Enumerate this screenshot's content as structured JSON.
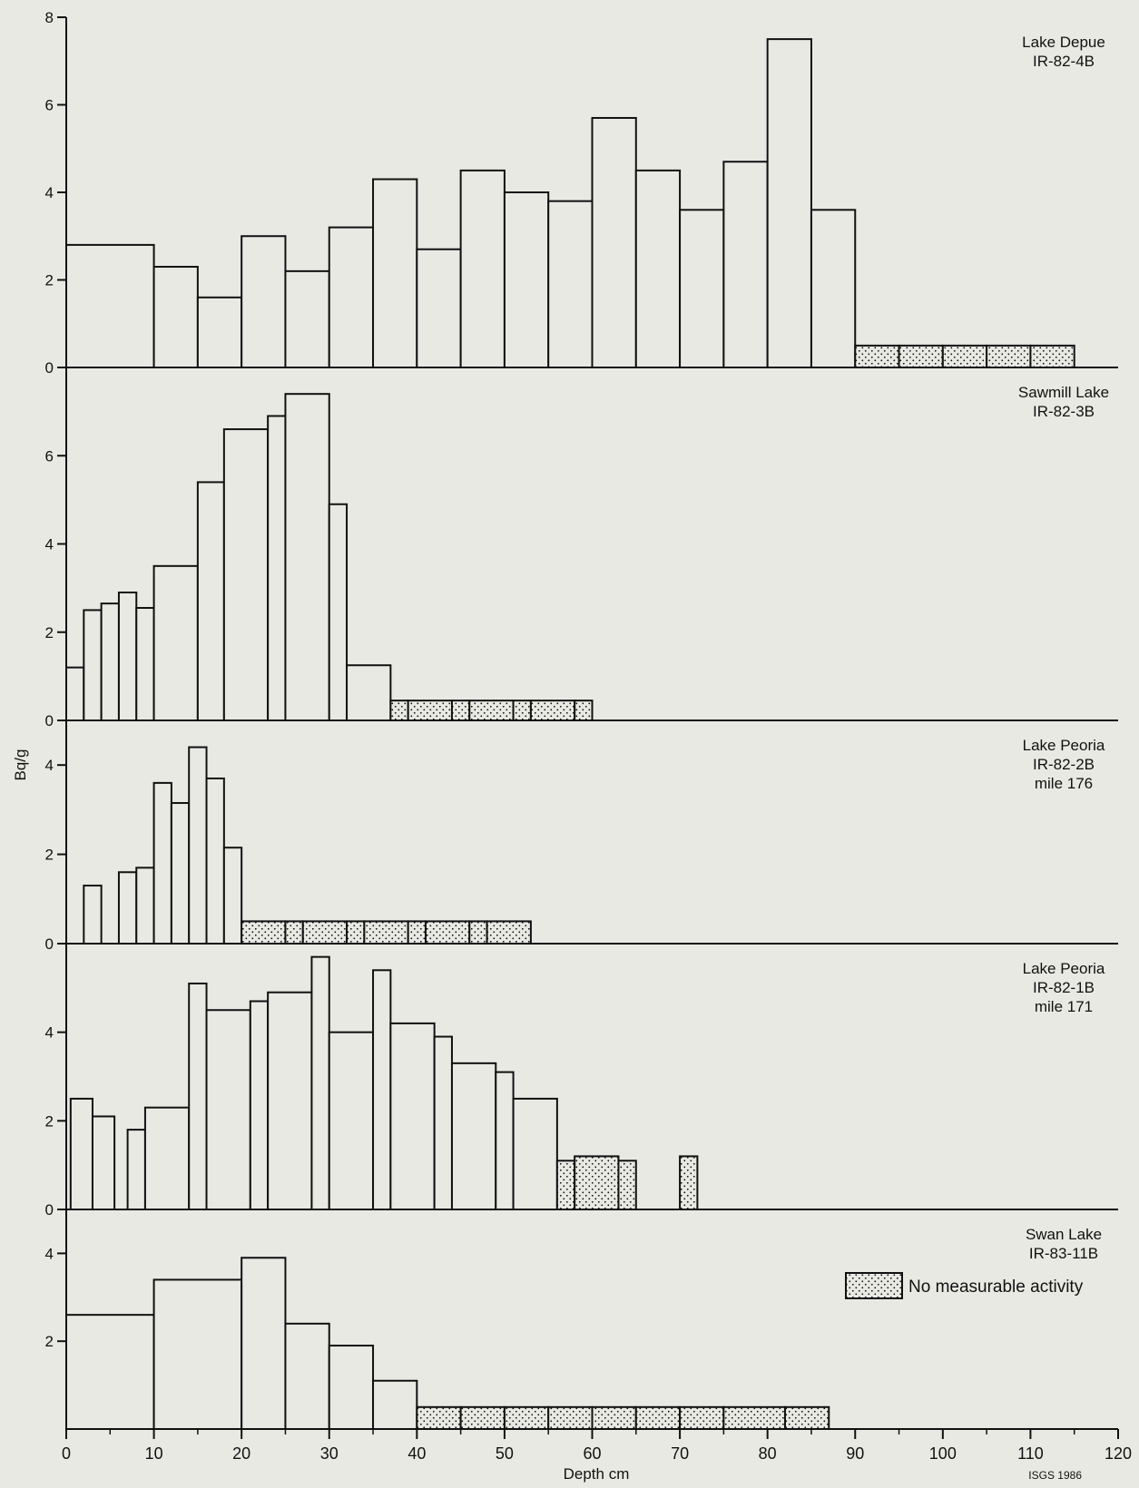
{
  "figure": {
    "ylabel": "Bq/g",
    "xlabel": "Depth cm",
    "credit": "ISGS 1986",
    "legend_label": "No measurable activity",
    "xticks": [
      "0",
      "10",
      "20",
      "30",
      "40",
      "50",
      "60",
      "70",
      "80",
      "90",
      "100",
      "110",
      "120"
    ]
  },
  "colors": {
    "background": "#e9e9e4",
    "bar_fill": "#e9e9e4",
    "stipple_fill": "#e9e9e4",
    "line": "#111111"
  },
  "chart_data": [
    {
      "type": "bar",
      "title": "Lake Depue",
      "subtitle": "IR-82-4B",
      "ylim": [
        0,
        8
      ],
      "yticks": [
        "0",
        "2",
        "4",
        "6",
        "8"
      ],
      "bars": [
        {
          "x0": 0,
          "x1": 10,
          "value": 2.8
        },
        {
          "x0": 10,
          "x1": 15,
          "value": 2.3
        },
        {
          "x0": 15,
          "x1": 20,
          "value": 1.6
        },
        {
          "x0": 20,
          "x1": 25,
          "value": 3.0
        },
        {
          "x0": 25,
          "x1": 30,
          "value": 2.2
        },
        {
          "x0": 30,
          "x1": 35,
          "value": 3.2
        },
        {
          "x0": 35,
          "x1": 40,
          "value": 4.3
        },
        {
          "x0": 40,
          "x1": 45,
          "value": 2.7
        },
        {
          "x0": 45,
          "x1": 50,
          "value": 4.5
        },
        {
          "x0": 50,
          "x1": 55,
          "value": 4.0
        },
        {
          "x0": 55,
          "x1": 60,
          "value": 3.8
        },
        {
          "x0": 60,
          "x1": 65,
          "value": 5.7
        },
        {
          "x0": 65,
          "x1": 70,
          "value": 4.5
        },
        {
          "x0": 70,
          "x1": 75,
          "value": 3.6
        },
        {
          "x0": 75,
          "x1": 80,
          "value": 4.7
        },
        {
          "x0": 80,
          "x1": 85,
          "value": 7.5
        },
        {
          "x0": 85,
          "x1": 90,
          "value": 3.6
        }
      ],
      "no_activity": [
        {
          "x0": 90,
          "x1": 95,
          "value": 0.5
        },
        {
          "x0": 95,
          "x1": 100,
          "value": 0.5
        },
        {
          "x0": 100,
          "x1": 105,
          "value": 0.5
        },
        {
          "x0": 105,
          "x1": 110,
          "value": 0.5
        },
        {
          "x0": 110,
          "x1": 115,
          "value": 0.5
        }
      ]
    },
    {
      "type": "bar",
      "title": "Sawmill Lake",
      "subtitle": "IR-82-3B",
      "ylim": [
        0,
        8
      ],
      "yticks": [
        "0",
        "2",
        "4",
        "6"
      ],
      "bars": [
        {
          "x0": 0,
          "x1": 2,
          "value": 1.2
        },
        {
          "x0": 2,
          "x1": 4,
          "value": 2.5
        },
        {
          "x0": 4,
          "x1": 6,
          "value": 2.65
        },
        {
          "x0": 6,
          "x1": 8,
          "value": 2.9
        },
        {
          "x0": 8,
          "x1": 10,
          "value": 2.55
        },
        {
          "x0": 10,
          "x1": 15,
          "value": 3.5
        },
        {
          "x0": 15,
          "x1": 18,
          "value": 5.4
        },
        {
          "x0": 18,
          "x1": 23,
          "value": 6.6
        },
        {
          "x0": 23,
          "x1": 25,
          "value": 6.9
        },
        {
          "x0": 25,
          "x1": 30,
          "value": 7.4
        },
        {
          "x0": 30,
          "x1": 32,
          "value": 4.9
        },
        {
          "x0": 32,
          "x1": 37,
          "value": 1.25
        }
      ],
      "no_activity": [
        {
          "x0": 37,
          "x1": 39,
          "value": 0.45
        },
        {
          "x0": 39,
          "x1": 44,
          "value": 0.45
        },
        {
          "x0": 44,
          "x1": 46,
          "value": 0.45
        },
        {
          "x0": 46,
          "x1": 51,
          "value": 0.45
        },
        {
          "x0": 51,
          "x1": 53,
          "value": 0.45
        },
        {
          "x0": 53,
          "x1": 58,
          "value": 0.45
        },
        {
          "x0": 58,
          "x1": 60,
          "value": 0.45
        }
      ]
    },
    {
      "type": "bar",
      "title": "Lake Peoria",
      "subtitle": "IR-82-2B",
      "subtitle2": "mile 176",
      "ylim": [
        0,
        5
      ],
      "yticks": [
        "0",
        "2",
        "4"
      ],
      "bars": [
        {
          "x0": 2,
          "x1": 4,
          "value": 1.3
        },
        {
          "x0": 6,
          "x1": 8,
          "value": 1.6
        },
        {
          "x0": 8,
          "x1": 10,
          "value": 1.7
        },
        {
          "x0": 10,
          "x1": 12,
          "value": 3.6
        },
        {
          "x0": 12,
          "x1": 14,
          "value": 3.15
        },
        {
          "x0": 14,
          "x1": 16,
          "value": 4.4
        },
        {
          "x0": 16,
          "x1": 18,
          "value": 3.7
        },
        {
          "x0": 18,
          "x1": 20,
          "value": 2.15
        }
      ],
      "no_activity": [
        {
          "x0": 20,
          "x1": 25,
          "value": 0.5
        },
        {
          "x0": 25,
          "x1": 27,
          "value": 0.5
        },
        {
          "x0": 27,
          "x1": 32,
          "value": 0.5
        },
        {
          "x0": 32,
          "x1": 34,
          "value": 0.5
        },
        {
          "x0": 34,
          "x1": 39,
          "value": 0.5
        },
        {
          "x0": 39,
          "x1": 41,
          "value": 0.5
        },
        {
          "x0": 41,
          "x1": 46,
          "value": 0.5
        },
        {
          "x0": 46,
          "x1": 48,
          "value": 0.5
        },
        {
          "x0": 48,
          "x1": 53,
          "value": 0.5
        }
      ]
    },
    {
      "type": "bar",
      "title": "Lake Peoria",
      "subtitle": "IR-82-1B",
      "subtitle2": "mile 171",
      "ylim": [
        0,
        6
      ],
      "yticks": [
        "0",
        "2",
        "4"
      ],
      "bars": [
        {
          "x0": 0.5,
          "x1": 3,
          "value": 2.5
        },
        {
          "x0": 3,
          "x1": 5.5,
          "value": 2.1
        },
        {
          "x0": 7,
          "x1": 9,
          "value": 1.8
        },
        {
          "x0": 9,
          "x1": 14,
          "value": 2.3
        },
        {
          "x0": 14,
          "x1": 16,
          "value": 5.1
        },
        {
          "x0": 16,
          "x1": 21,
          "value": 4.5
        },
        {
          "x0": 21,
          "x1": 23,
          "value": 4.7
        },
        {
          "x0": 23,
          "x1": 28,
          "value": 4.9
        },
        {
          "x0": 28,
          "x1": 30,
          "value": 5.7
        },
        {
          "x0": 30,
          "x1": 35,
          "value": 4.0
        },
        {
          "x0": 35,
          "x1": 37,
          "value": 5.4
        },
        {
          "x0": 37,
          "x1": 42,
          "value": 4.2
        },
        {
          "x0": 42,
          "x1": 44,
          "value": 3.9
        },
        {
          "x0": 44,
          "x1": 49,
          "value": 3.3
        },
        {
          "x0": 49,
          "x1": 51,
          "value": 3.1
        },
        {
          "x0": 51,
          "x1": 56,
          "value": 2.5
        }
      ],
      "no_activity": [
        {
          "x0": 56,
          "x1": 58,
          "value": 1.1
        },
        {
          "x0": 58,
          "x1": 63,
          "value": 1.2
        },
        {
          "x0": 63,
          "x1": 65,
          "value": 1.1
        },
        {
          "x0": 70,
          "x1": 72,
          "value": 1.2
        }
      ]
    },
    {
      "type": "bar",
      "title": "Swan Lake",
      "subtitle": "IR-83-11B",
      "ylim": [
        0,
        5
      ],
      "yticks": [
        "2",
        "4"
      ],
      "bars": [
        {
          "x0": 0,
          "x1": 10,
          "value": 2.6
        },
        {
          "x0": 10,
          "x1": 20,
          "value": 3.4
        },
        {
          "x0": 20,
          "x1": 25,
          "value": 3.9
        },
        {
          "x0": 25,
          "x1": 30,
          "value": 2.4
        },
        {
          "x0": 30,
          "x1": 35,
          "value": 1.9
        },
        {
          "x0": 35,
          "x1": 40,
          "value": 1.1
        }
      ],
      "no_activity": [
        {
          "x0": 40,
          "x1": 45,
          "value": 0.5
        },
        {
          "x0": 45,
          "x1": 50,
          "value": 0.5
        },
        {
          "x0": 50,
          "x1": 55,
          "value": 0.5
        },
        {
          "x0": 55,
          "x1": 60,
          "value": 0.5
        },
        {
          "x0": 60,
          "x1": 65,
          "value": 0.5
        },
        {
          "x0": 65,
          "x1": 70,
          "value": 0.5
        },
        {
          "x0": 70,
          "x1": 75,
          "value": 0.5
        },
        {
          "x0": 75,
          "x1": 82,
          "value": 0.5
        },
        {
          "x0": 82,
          "x1": 87,
          "value": 0.5
        }
      ]
    }
  ]
}
